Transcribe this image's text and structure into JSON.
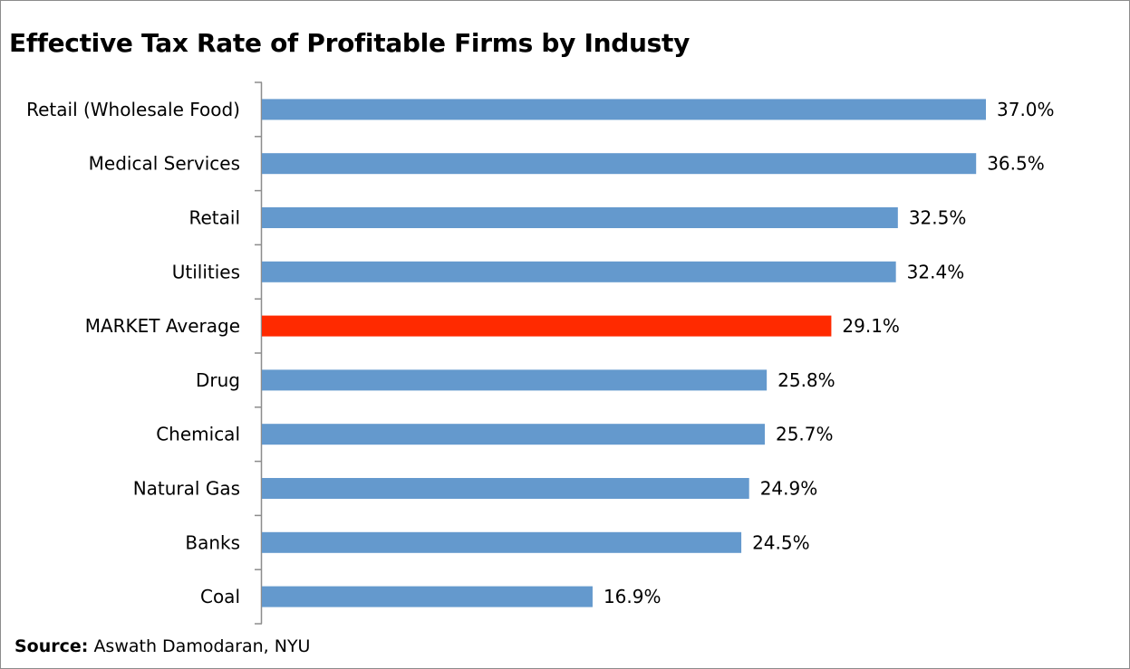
{
  "chart_data": {
    "type": "bar",
    "orientation": "horizontal",
    "title": "Effective Tax Rate of Profitable Firms by Industy",
    "categories": [
      "Retail (Wholesale Food)",
      "Medical Services",
      "Retail",
      "Utilities",
      "MARKET Average",
      "Drug",
      "Chemical",
      "Natural Gas",
      "Banks",
      "Coal"
    ],
    "values": [
      37.0,
      36.5,
      32.5,
      32.4,
      29.1,
      25.8,
      25.7,
      24.9,
      24.5,
      16.9
    ],
    "value_labels": [
      "37.0%",
      "36.5%",
      "32.5%",
      "32.4%",
      "29.1%",
      "25.8%",
      "25.7%",
      "24.9%",
      "24.5%",
      "16.9%"
    ],
    "highlight_category": "MARKET Average",
    "colors": {
      "default": "#6499cd",
      "highlight": "#ff2a00"
    },
    "xlabel": "",
    "ylabel": "",
    "xlim": [
      0,
      37.0
    ],
    "grid": false,
    "legend": "none"
  },
  "source": {
    "label": "Source:",
    "text": "Aswath Damodaran, NYU"
  }
}
